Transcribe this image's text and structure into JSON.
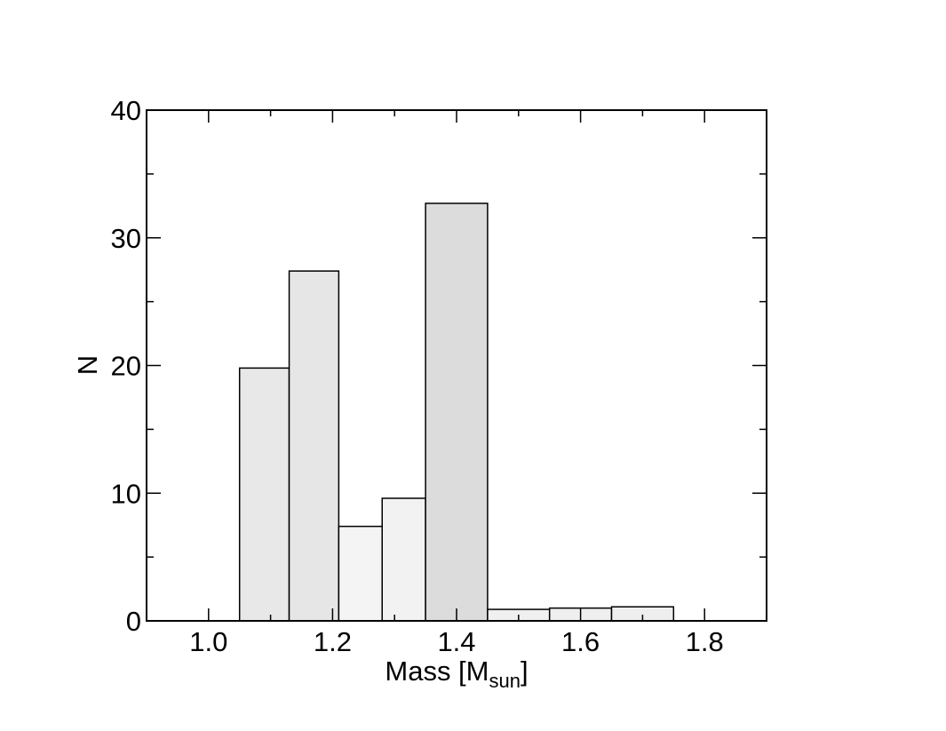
{
  "chart_data": {
    "type": "bar",
    "title": "",
    "xlabel": {
      "main": "Mass  [M",
      "sub": "sun",
      "close": "]"
    },
    "ylabel": "N",
    "xlim": [
      0.9,
      1.9
    ],
    "ylim": [
      0,
      40
    ],
    "x_ticks": [
      1.0,
      1.2,
      1.4,
      1.6,
      1.8
    ],
    "x_tick_labels": [
      "1.0",
      "1.2",
      "1.4",
      "1.6",
      "1.8"
    ],
    "y_ticks": [
      0,
      10,
      20,
      30,
      40
    ],
    "y_tick_labels": [
      "0",
      "10",
      "20",
      "30",
      "40"
    ],
    "grid": false,
    "bins": [
      {
        "x0": 1.05,
        "x1": 1.13,
        "value": 19.8,
        "fill": "#e8e8e8"
      },
      {
        "x0": 1.13,
        "x1": 1.21,
        "value": 27.4,
        "fill": "#e6e6e6"
      },
      {
        "x0": 1.21,
        "x1": 1.28,
        "value": 7.4,
        "fill": "#f4f4f4"
      },
      {
        "x0": 1.28,
        "x1": 1.35,
        "value": 9.6,
        "fill": "#f2f2f2"
      },
      {
        "x0": 1.35,
        "x1": 1.45,
        "value": 32.7,
        "fill": "#dcdcdc"
      },
      {
        "x0": 1.45,
        "x1": 1.55,
        "value": 0.9,
        "fill": "#f0f0f0"
      },
      {
        "x0": 1.55,
        "x1": 1.65,
        "value": 1.0,
        "fill": "#efefef"
      },
      {
        "x0": 1.65,
        "x1": 1.75,
        "value": 1.1,
        "fill": "#eeeeee"
      }
    ]
  }
}
